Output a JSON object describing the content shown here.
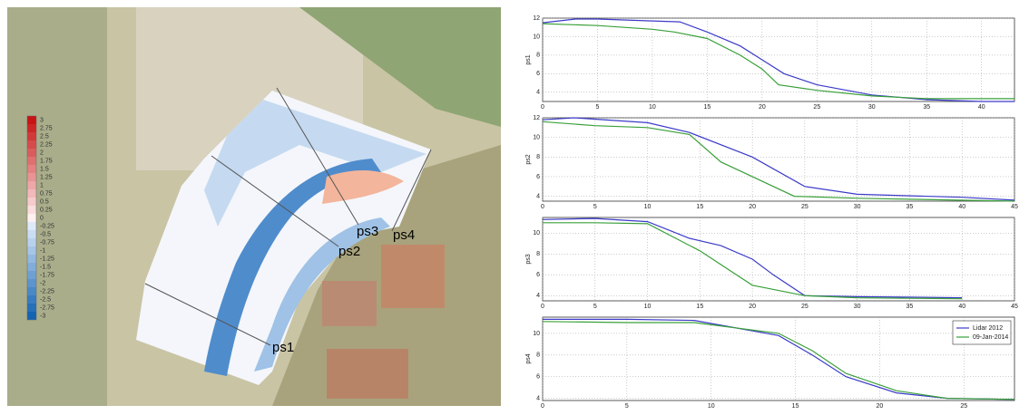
{
  "map": {
    "colorbar": {
      "ticks": [
        3,
        2.75,
        2.5,
        2.25,
        2,
        1.75,
        1.5,
        1.25,
        1,
        0.75,
        0.5,
        0.25,
        0,
        -0.25,
        -0.5,
        -0.75,
        -1,
        -1.25,
        -1.5,
        -1.75,
        -2,
        -2.25,
        -2.5,
        -2.75,
        -3
      ]
    },
    "profile_labels": [
      "ps1",
      "ps2",
      "ps3",
      "ps4"
    ]
  },
  "chart_data": [
    {
      "type": "line",
      "ylabel": "ps1",
      "xlim": [
        0,
        43
      ],
      "ylim": [
        3,
        12
      ],
      "xticks": [
        0,
        5,
        10,
        15,
        20,
        25,
        30,
        35,
        40
      ],
      "yticks": [
        4,
        6,
        8,
        10,
        12
      ],
      "grid": true,
      "series": [
        {
          "color": "#3b3bc8",
          "x": [
            0,
            3,
            5,
            10,
            12.5,
            15,
            18,
            20,
            22,
            25,
            30,
            35,
            40,
            43
          ],
          "values": [
            11.5,
            11.9,
            11.9,
            11.7,
            11.6,
            10.5,
            9,
            7.5,
            6,
            4.8,
            3.7,
            3.2,
            3,
            3
          ]
        },
        {
          "color": "#3aa03a",
          "x": [
            0,
            5,
            10,
            12,
            15,
            18,
            20,
            21.5,
            25,
            30,
            35,
            43
          ],
          "values": [
            11.4,
            11.2,
            10.8,
            10.5,
            9.8,
            8,
            6.5,
            4.8,
            4.2,
            3.6,
            3.3,
            3.3
          ]
        }
      ]
    },
    {
      "type": "line",
      "ylabel": "ps2",
      "xlim": [
        0,
        45
      ],
      "ylim": [
        3.5,
        12
      ],
      "xticks": [
        0,
        5,
        10,
        15,
        20,
        25,
        30,
        35,
        40,
        45
      ],
      "yticks": [
        4,
        6,
        8,
        10,
        12
      ],
      "grid": true,
      "series": [
        {
          "color": "#3b3bc8",
          "x": [
            0,
            3,
            10,
            14,
            20,
            25,
            30,
            40,
            45
          ],
          "values": [
            11.8,
            12,
            11.5,
            10.5,
            8,
            5,
            4.2,
            3.9,
            3.6
          ]
        },
        {
          "color": "#3aa03a",
          "x": [
            0,
            5,
            10,
            14,
            17,
            20,
            24,
            30,
            45
          ],
          "values": [
            11.6,
            11.2,
            11,
            10.3,
            7.5,
            6,
            4,
            3.8,
            3.5
          ]
        }
      ]
    },
    {
      "type": "line",
      "ylabel": "ps3",
      "xlim": [
        0,
        45
      ],
      "ylim": [
        3.5,
        11.5
      ],
      "xticks": [
        0,
        5,
        10,
        15,
        20,
        25,
        30,
        35,
        40,
        45
      ],
      "yticks": [
        4,
        6,
        8,
        10
      ],
      "grid": true,
      "series": [
        {
          "color": "#3b3bc8",
          "x": [
            0,
            5,
            10,
            14,
            17,
            20,
            22,
            25,
            30,
            40
          ],
          "values": [
            11.3,
            11.4,
            11.1,
            9.5,
            8.8,
            7.5,
            6,
            4,
            3.9,
            3.8
          ]
        },
        {
          "color": "#3aa03a",
          "x": [
            0,
            5,
            10,
            15,
            20,
            25,
            30,
            40
          ],
          "values": [
            11,
            11,
            10.9,
            8.3,
            5,
            4,
            3.8,
            3.7
          ]
        }
      ]
    },
    {
      "type": "line",
      "ylabel": "ps4",
      "xlim": [
        0,
        28
      ],
      "ylim": [
        3.8,
        11.5
      ],
      "xticks": [
        0,
        5,
        10,
        15,
        20,
        25
      ],
      "yticks": [
        4,
        6,
        8,
        10
      ],
      "grid": true,
      "legend": "upper right",
      "series": [
        {
          "name": "Lidar 2012",
          "color": "#3b3bc8",
          "x": [
            0,
            5,
            9,
            14,
            16,
            18,
            21,
            24,
            28
          ],
          "values": [
            11.3,
            11.3,
            11.2,
            9.8,
            8,
            6,
            4.5,
            4,
            3.9
          ]
        },
        {
          "name": "09-Jan-2014",
          "color": "#3aa03a",
          "x": [
            0,
            5,
            9,
            14,
            16,
            18,
            21,
            24,
            28
          ],
          "values": [
            11.1,
            11,
            11,
            10,
            8.4,
            6.3,
            4.7,
            4,
            3.9
          ]
        }
      ]
    }
  ]
}
